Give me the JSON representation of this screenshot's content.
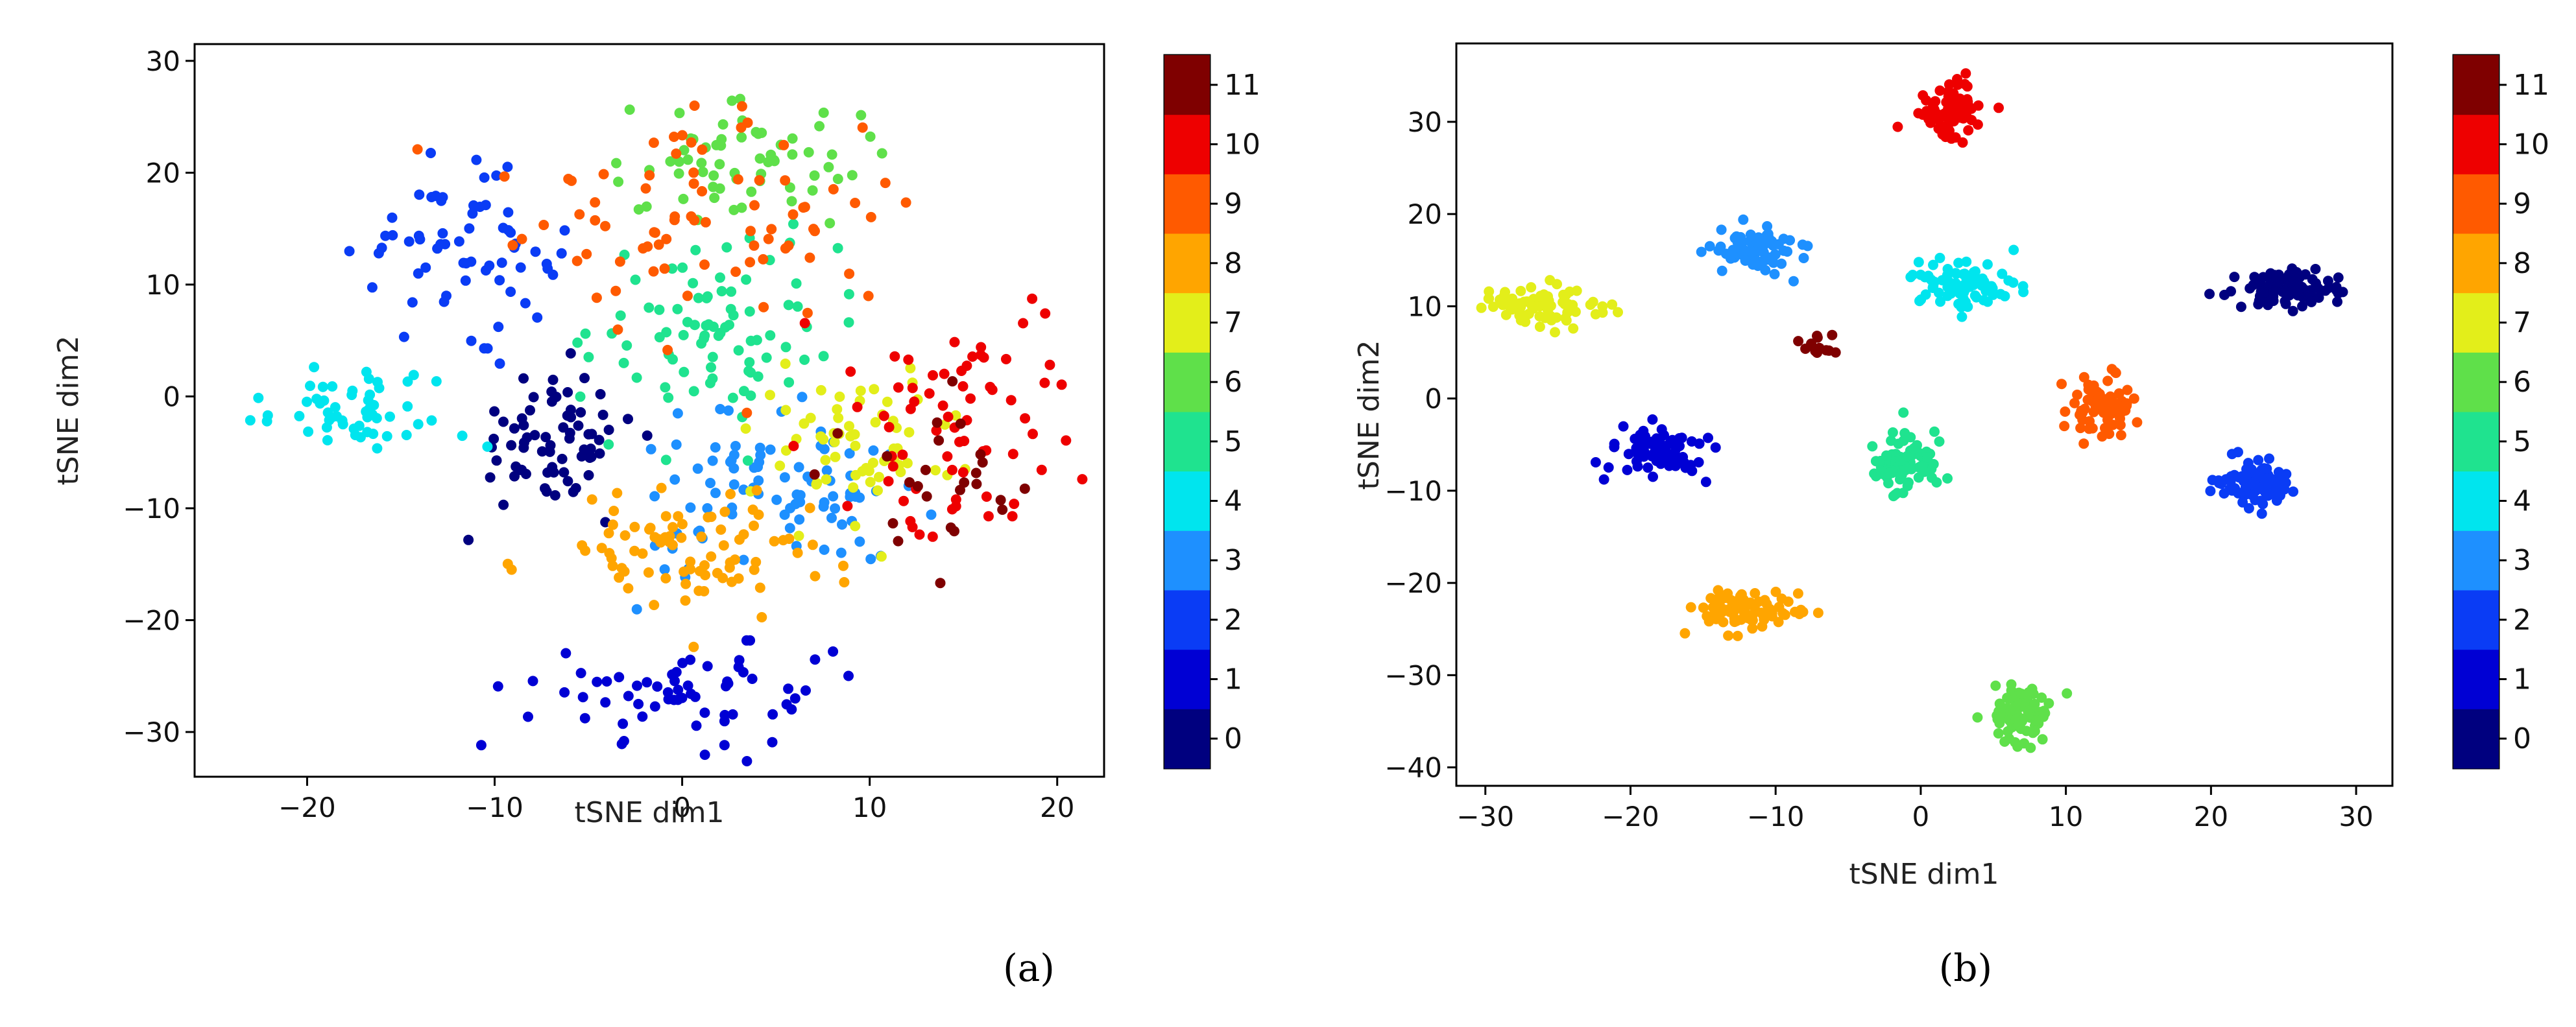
{
  "chart_data": [
    {
      "type": "scatter",
      "panel": "a",
      "panel_label": "(a)",
      "xlabel": "tSNE dim1",
      "ylabel": "tSNE dim2",
      "xlim": [
        -26,
        22.5
      ],
      "ylim": [
        -34,
        31.5
      ],
      "xticks": [
        -20,
        -10,
        0,
        10,
        20
      ],
      "yticks": [
        -30,
        -20,
        -10,
        0,
        10,
        20,
        30
      ],
      "colorbar": {
        "labels": [
          "0",
          "1",
          "2",
          "3",
          "4",
          "5",
          "6",
          "7",
          "8",
          "9",
          "10",
          "11"
        ]
      },
      "clusters": [
        {
          "label": 0,
          "cx": -7,
          "cy": -4,
          "sx": 2.2,
          "sy": 3.2,
          "n": 70
        },
        {
          "label": 1,
          "cx": 1,
          "cy": -26.5,
          "sx": 4.5,
          "sy": 2.3,
          "n": 65
        },
        {
          "label": 2,
          "cx": -12,
          "cy": 13,
          "sx": 2.6,
          "sy": 3.2,
          "n": 65
        },
        {
          "label": 3,
          "cx": 5,
          "cy": -9,
          "sx": 3.8,
          "sy": 3.5,
          "n": 90
        },
        {
          "label": 4,
          "cx": -17,
          "cy": -1,
          "sx": 3.5,
          "sy": 1.8,
          "n": 55
        },
        {
          "label": 5,
          "cx": 2,
          "cy": 6,
          "sx": 3.2,
          "sy": 4.5,
          "n": 85
        },
        {
          "label": 6,
          "cx": 3,
          "cy": 21,
          "sx": 3.0,
          "sy": 2.5,
          "n": 65
        },
        {
          "label": 7,
          "cx": 9,
          "cy": -4,
          "sx": 3.2,
          "sy": 3.5,
          "n": 65
        },
        {
          "label": 8,
          "cx": 0.5,
          "cy": -14,
          "sx": 3.8,
          "sy": 2.8,
          "n": 85
        },
        {
          "label": 9,
          "cx": 2,
          "cy": 17,
          "sx": 5.5,
          "sy": 5.5,
          "n": 80
        },
        {
          "label": 10,
          "cx": 15.5,
          "cy": -2,
          "sx": 3.0,
          "sy": 5.5,
          "n": 70
        },
        {
          "label": 11,
          "cx": 13,
          "cy": -8,
          "sx": 2.5,
          "sy": 3.5,
          "n": 25
        }
      ]
    },
    {
      "type": "scatter",
      "panel": "b",
      "panel_label": "(b)",
      "xlabel": "tSNE dim1",
      "ylabel": "tSNE dim2",
      "xlim": [
        -32,
        32.5
      ],
      "ylim": [
        -42,
        38.5
      ],
      "xticks": [
        -30,
        -20,
        -10,
        0,
        10,
        20,
        30
      ],
      "yticks": [
        -40,
        -30,
        -20,
        -10,
        0,
        10,
        20,
        30
      ],
      "colorbar": {
        "labels": [
          "0",
          "1",
          "2",
          "3",
          "4",
          "5",
          "6",
          "7",
          "8",
          "9",
          "10",
          "11"
        ]
      },
      "clusters": [
        {
          "label": 0,
          "cx": 25,
          "cy": 12,
          "sx": 1.8,
          "sy": 1.1,
          "n": 80
        },
        {
          "label": 1,
          "cx": -18,
          "cy": -6,
          "sx": 1.8,
          "sy": 1.3,
          "n": 80
        },
        {
          "label": 2,
          "cx": 23,
          "cy": -9,
          "sx": 1.5,
          "sy": 1.3,
          "n": 80
        },
        {
          "label": 3,
          "cx": -11,
          "cy": 16,
          "sx": 1.7,
          "sy": 1.2,
          "n": 80
        },
        {
          "label": 4,
          "cx": 3,
          "cy": 12,
          "sx": 1.9,
          "sy": 1.4,
          "n": 80
        },
        {
          "label": 5,
          "cx": -1,
          "cy": -7,
          "sx": 1.1,
          "sy": 1.8,
          "n": 80
        },
        {
          "label": 6,
          "cx": 7,
          "cy": -34,
          "sx": 1.0,
          "sy": 1.6,
          "n": 80
        },
        {
          "label": 7,
          "cx": -26,
          "cy": 10,
          "sx": 1.9,
          "sy": 1.0,
          "n": 80
        },
        {
          "label": 8,
          "cx": -12,
          "cy": -23,
          "sx": 1.7,
          "sy": 1.1,
          "n": 80
        },
        {
          "label": 9,
          "cx": 12.5,
          "cy": -1,
          "sx": 1.1,
          "sy": 1.8,
          "n": 75
        },
        {
          "label": 10,
          "cx": 2,
          "cy": 31,
          "sx": 1.1,
          "sy": 1.5,
          "n": 80
        },
        {
          "label": 11,
          "cx": -7,
          "cy": 6,
          "sx": 0.5,
          "sy": 0.7,
          "n": 12
        }
      ]
    }
  ]
}
